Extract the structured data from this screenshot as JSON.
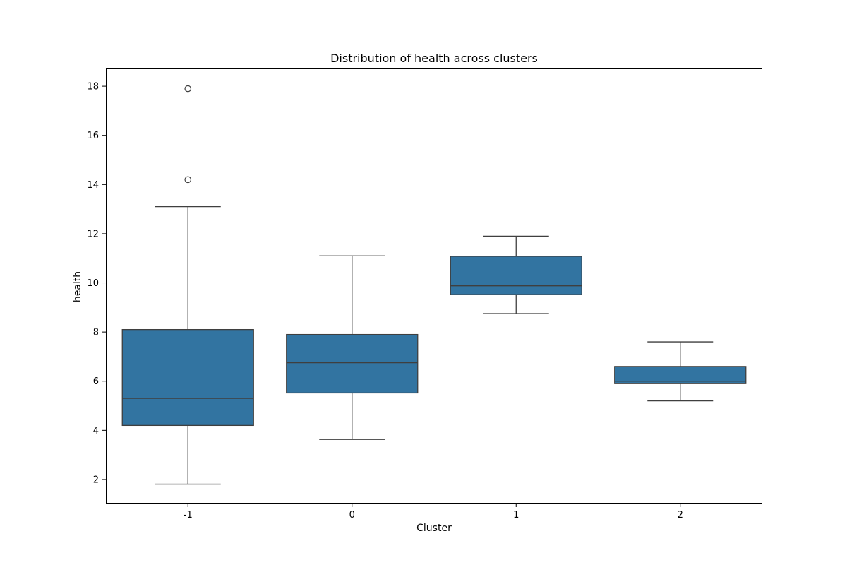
{
  "chart_data": {
    "type": "box",
    "title": "Distribution of health across clusters",
    "xlabel": "Cluster",
    "ylabel": "health",
    "categories": [
      "-1",
      "0",
      "1",
      "2"
    ],
    "ylim": [
      1.05,
      18.75
    ],
    "yticks": [
      2,
      4,
      6,
      8,
      10,
      12,
      14,
      16,
      18
    ],
    "grid": false,
    "box_color": "#3274a1",
    "line_color": "#3f3f3f",
    "boxes": [
      {
        "category": "-1",
        "whisker_low": 1.81,
        "q1": 4.2,
        "median": 5.3,
        "q3": 8.1,
        "whisker_high": 13.1,
        "outliers": [
          14.2,
          17.9
        ]
      },
      {
        "category": "0",
        "whisker_low": 3.63,
        "q1": 5.52,
        "median": 6.75,
        "q3": 7.9,
        "whisker_high": 11.1,
        "outliers": []
      },
      {
        "category": "1",
        "whisker_low": 8.75,
        "q1": 9.52,
        "median": 9.88,
        "q3": 11.08,
        "whisker_high": 11.9,
        "outliers": []
      },
      {
        "category": "2",
        "whisker_low": 5.2,
        "q1": 5.9,
        "median": 6.0,
        "q3": 6.6,
        "whisker_high": 7.6,
        "outliers": []
      }
    ]
  }
}
